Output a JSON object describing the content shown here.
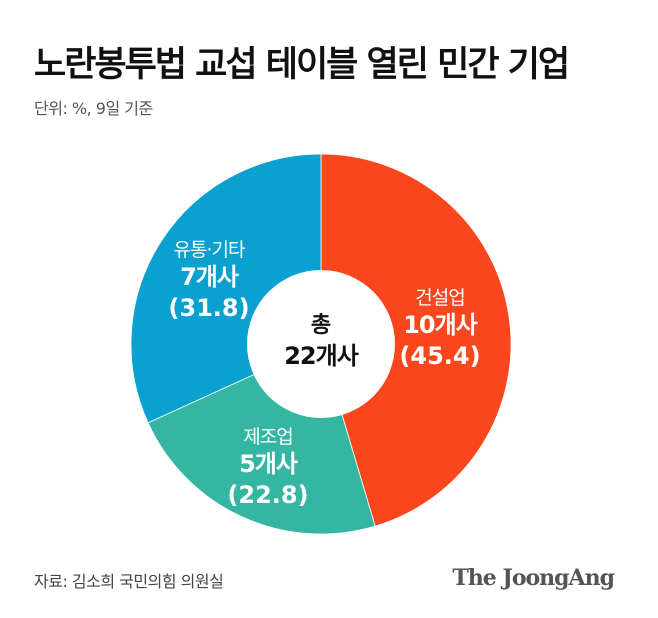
{
  "header": {
    "title": "노란봉투법 교섭 테이블 열린 민간 기업",
    "subtitle": "단위: %, 9일 기준"
  },
  "chart_data": {
    "type": "pie",
    "variant": "donut",
    "title": "노란봉투법 교섭 테이블 열린 민간 기업",
    "unit": "%",
    "note": "9일 기준",
    "center_label": [
      "총",
      "22개사"
    ],
    "total_companies": 22,
    "slices": [
      {
        "name": "건설업",
        "count": 10,
        "count_label": "10개사",
        "value": 45.4,
        "value_label": "(45.4)",
        "color": "#F9461C"
      },
      {
        "name": "제조업",
        "count": 5,
        "count_label": "5개사",
        "value": 22.8,
        "value_label": "(22.8)",
        "color": "#35B6A3"
      },
      {
        "name": "유통·기타",
        "count": 7,
        "count_label": "7개사",
        "value": 31.8,
        "value_label": "(31.8)",
        "color": "#0AA0CF"
      }
    ],
    "start_angle": "12 o'clock",
    "direction": "clockwise"
  },
  "labels": {
    "construction": {
      "name": "건설업",
      "count": "10개사",
      "pct": "(45.4)"
    },
    "manufacturing": {
      "name": "제조업",
      "count": "5개사",
      "pct": "(22.8)"
    },
    "retail": {
      "name": "유통·기타",
      "count": "7개사",
      "pct": "(31.8)"
    },
    "center": {
      "line1": "총",
      "line2": "22개사"
    }
  },
  "footer": {
    "source": "자료: 김소희 국민의힘 의원실",
    "logo": "The JoongAng"
  }
}
